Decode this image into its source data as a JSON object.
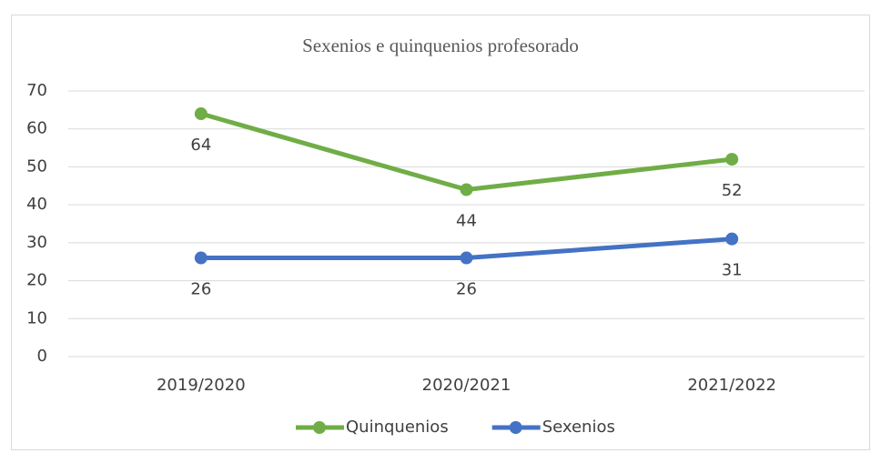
{
  "chart_data": {
    "type": "line",
    "title": "Sexenios e quinquenios profesorado",
    "categories": [
      "2019/2020",
      "2020/2021",
      "2021/2022"
    ],
    "series": [
      {
        "name": "Quinquenios",
        "color": "#70ad47",
        "values": [
          64,
          44,
          52
        ]
      },
      {
        "name": "Sexenios",
        "color": "#4472c4",
        "values": [
          26,
          26,
          31
        ]
      }
    ],
    "ylim": [
      0,
      70
    ],
    "yticks": [
      0,
      10,
      20,
      30,
      40,
      50,
      60,
      70
    ],
    "grid": true,
    "legend": "bottom"
  }
}
